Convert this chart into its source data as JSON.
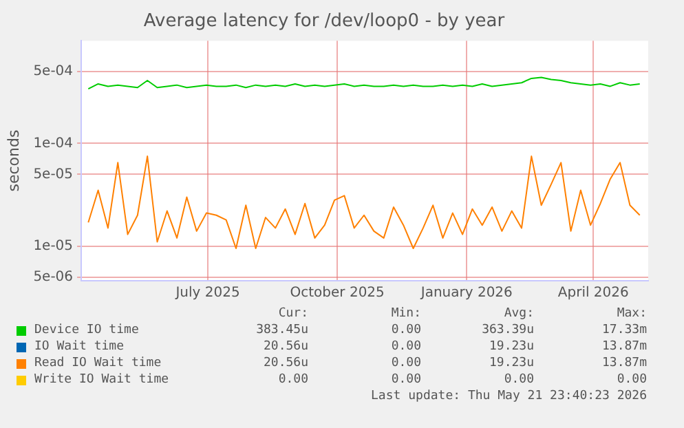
{
  "chart_data": {
    "type": "line",
    "title": "Average latency for /dev/loop0 - by year",
    "ylabel": "seconds",
    "x": [
      "2025-04-07",
      "2025-04-14",
      "2025-04-21",
      "2025-04-28",
      "2025-05-05",
      "2025-05-12",
      "2025-05-19",
      "2025-05-26",
      "2025-06-02",
      "2025-06-09",
      "2025-06-16",
      "2025-06-23",
      "2025-06-30",
      "2025-07-07",
      "2025-07-14",
      "2025-07-21",
      "2025-07-28",
      "2025-08-04",
      "2025-08-11",
      "2025-08-18",
      "2025-08-25",
      "2025-09-01",
      "2025-09-08",
      "2025-09-15",
      "2025-09-22",
      "2025-09-29",
      "2025-10-06",
      "2025-10-13",
      "2025-10-20",
      "2025-10-27",
      "2025-11-03",
      "2025-11-10",
      "2025-11-17",
      "2025-11-24",
      "2025-12-01",
      "2025-12-08",
      "2025-12-15",
      "2025-12-22",
      "2025-12-29",
      "2026-01-05",
      "2026-01-12",
      "2026-01-19",
      "2026-01-26",
      "2026-02-02",
      "2026-02-09",
      "2026-02-16",
      "2026-02-23",
      "2026-03-02",
      "2026-03-09",
      "2026-03-16",
      "2026-03-23",
      "2026-03-30",
      "2026-04-06",
      "2026-04-13",
      "2026-04-20",
      "2026-04-27",
      "2026-05-04"
    ],
    "series": [
      {
        "name": "Device IO time",
        "color": "#00cc00",
        "values": [
          0.00034,
          0.00038,
          0.00036,
          0.00037,
          0.00036,
          0.00035,
          0.00041,
          0.00035,
          0.00036,
          0.00037,
          0.00035,
          0.00036,
          0.00037,
          0.00036,
          0.00036,
          0.00037,
          0.00035,
          0.00037,
          0.00036,
          0.00037,
          0.00036,
          0.00038,
          0.00036,
          0.00037,
          0.00036,
          0.00037,
          0.00038,
          0.00036,
          0.00037,
          0.00036,
          0.00036,
          0.00037,
          0.00036,
          0.00037,
          0.00036,
          0.00036,
          0.00037,
          0.00036,
          0.00037,
          0.00036,
          0.00038,
          0.00036,
          0.00037,
          0.00038,
          0.00039,
          0.00043,
          0.00044,
          0.00042,
          0.00041,
          0.00039,
          0.00038,
          0.00037,
          0.00038,
          0.00036,
          0.00039,
          0.00037,
          0.00038
        ]
      },
      {
        "name": "IO Wait time",
        "color": "#0066b3",
        "values": [
          null,
          null,
          null,
          null,
          null,
          null,
          null,
          null,
          null,
          null,
          null,
          null,
          null,
          null,
          null,
          null,
          null,
          null,
          null,
          null,
          null,
          null,
          null,
          null,
          null,
          null,
          null,
          null,
          null,
          null,
          null,
          null,
          null,
          null,
          null,
          null,
          null,
          null,
          null,
          null,
          null,
          null,
          null,
          null,
          null,
          null,
          null,
          null,
          null,
          null,
          null,
          null,
          null,
          null,
          null,
          null,
          null
        ]
      },
      {
        "name": "Read IO Wait time",
        "color": "#ff8000",
        "values": [
          1.7e-05,
          3.5e-05,
          1.5e-05,
          6.5e-05,
          1.3e-05,
          2e-05,
          7.5e-05,
          1.1e-05,
          2.2e-05,
          1.2e-05,
          3e-05,
          1.4e-05,
          2.1e-05,
          2e-05,
          1.8e-05,
          9.5e-06,
          2.5e-05,
          9.5e-06,
          1.9e-05,
          1.5e-05,
          2.3e-05,
          1.3e-05,
          2.6e-05,
          1.2e-05,
          1.6e-05,
          2.8e-05,
          3.1e-05,
          1.5e-05,
          2e-05,
          1.4e-05,
          1.2e-05,
          2.4e-05,
          1.6e-05,
          9.5e-06,
          1.5e-05,
          2.5e-05,
          1.2e-05,
          2.1e-05,
          1.3e-05,
          2.3e-05,
          1.6e-05,
          2.4e-05,
          1.4e-05,
          2.2e-05,
          1.5e-05,
          7.5e-05,
          2.5e-05,
          4e-05,
          6.5e-05,
          1.4e-05,
          3.5e-05,
          1.6e-05,
          2.6e-05,
          4.5e-05,
          6.5e-05,
          2.5e-05,
          2e-05
        ]
      },
      {
        "name": "Write IO Wait time",
        "color": "#ffcc00",
        "values": [
          null,
          null,
          null,
          null,
          null,
          null,
          null,
          null,
          null,
          null,
          null,
          null,
          null,
          null,
          null,
          null,
          null,
          null,
          null,
          null,
          null,
          null,
          null,
          null,
          null,
          null,
          null,
          null,
          null,
          null,
          null,
          null,
          null,
          null,
          null,
          null,
          null,
          null,
          null,
          null,
          null,
          null,
          null,
          null,
          null,
          null,
          null,
          null,
          null,
          null,
          null,
          null,
          null,
          null,
          null,
          null,
          null
        ]
      }
    ],
    "xlim": [
      "2025-04-02",
      "2026-05-10"
    ],
    "xticks": [
      {
        "value": "2025-07-01",
        "label": "July 2025"
      },
      {
        "value": "2025-10-01",
        "label": "October 2025"
      },
      {
        "value": "2026-01-01",
        "label": "January 2026"
      },
      {
        "value": "2026-04-01",
        "label": "April 2026"
      }
    ],
    "ylim": [
      4.6e-06,
      0.001
    ],
    "yticks": [
      {
        "value": 5e-06,
        "label": "5e-06"
      },
      {
        "value": 1e-05,
        "label": "1e-05"
      },
      {
        "value": 5e-05,
        "label": "5e-05"
      },
      {
        "value": 0.0001,
        "label": "1e-04"
      },
      {
        "value": 0.0005,
        "label": "5e-04"
      }
    ],
    "log": true,
    "grid": true,
    "legend": "bottom",
    "marker": "none",
    "line_style": "solid",
    "annotations": [
      "Cur:",
      "Min:",
      "Avg:",
      "Max:",
      "383.45u",
      "0.00",
      "363.39u",
      "17.33m",
      "20.56u",
      "0.00",
      "19.23u",
      "13.87m",
      "20.56u",
      "0.00",
      "19.23u",
      "13.87m",
      "0.00",
      "0.00",
      "0.00",
      "0.00",
      "Last update: Thu May 21 23:40:23 2026"
    ]
  }
}
